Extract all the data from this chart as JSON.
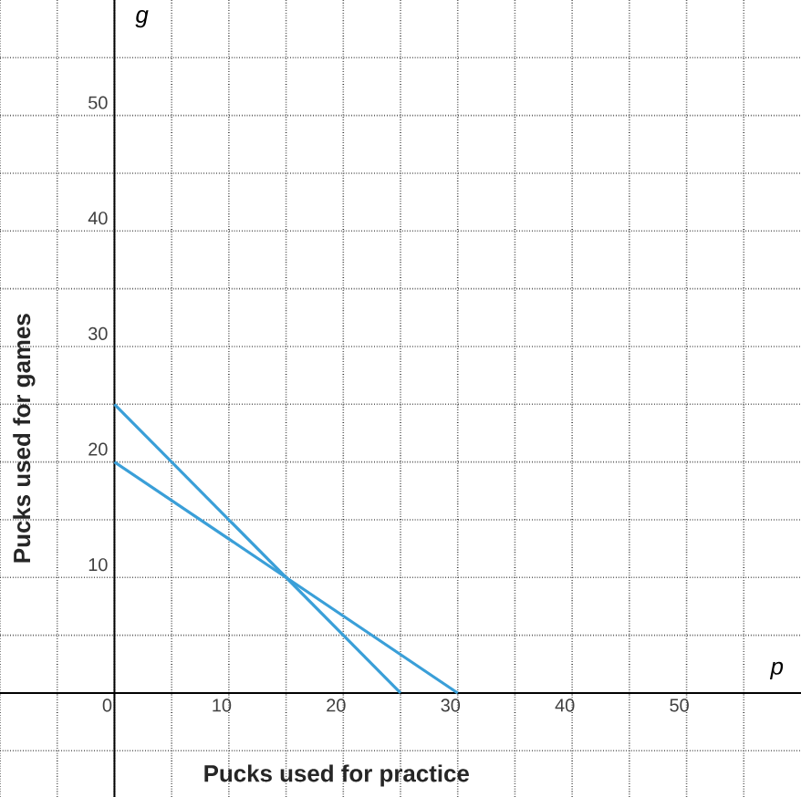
{
  "chart_data": {
    "type": "line",
    "xlabel": "Pucks used for practice",
    "ylabel": "Pucks used for games",
    "annotations": [
      "g",
      "p"
    ],
    "series": [
      {
        "x": [
          0,
          30
        ],
        "values": [
          20,
          0
        ],
        "color": "#3a9fd8"
      },
      {
        "x": [
          0,
          25
        ],
        "values": [
          25,
          0
        ],
        "color": "#3a9fd8"
      }
    ],
    "xlim": [
      -10,
      60
    ],
    "ylim": [
      -9,
      60
    ],
    "xticks": [
      {
        "value": -10,
        "label": null
      },
      {
        "value": -5,
        "label": null
      },
      0,
      {
        "value": 5,
        "label": null
      },
      10,
      {
        "value": 15,
        "label": null
      },
      20,
      {
        "value": 25,
        "label": null
      },
      30,
      {
        "value": 35,
        "label": null
      },
      40,
      {
        "value": 45,
        "label": null
      },
      50,
      {
        "value": 55,
        "label": null
      }
    ],
    "yticks": [
      {
        "value": -5,
        "label": null
      },
      {
        "value": 0,
        "label": null
      },
      {
        "value": 5,
        "label": null
      },
      10,
      {
        "value": 15,
        "label": null
      },
      20,
      {
        "value": 25,
        "label": null
      },
      30,
      {
        "value": 35,
        "label": null
      },
      40,
      {
        "value": 45,
        "label": null
      },
      50,
      {
        "value": 55,
        "label": null
      }
    ],
    "grid": true,
    "marker": "none",
    "line_style": "solid"
  }
}
